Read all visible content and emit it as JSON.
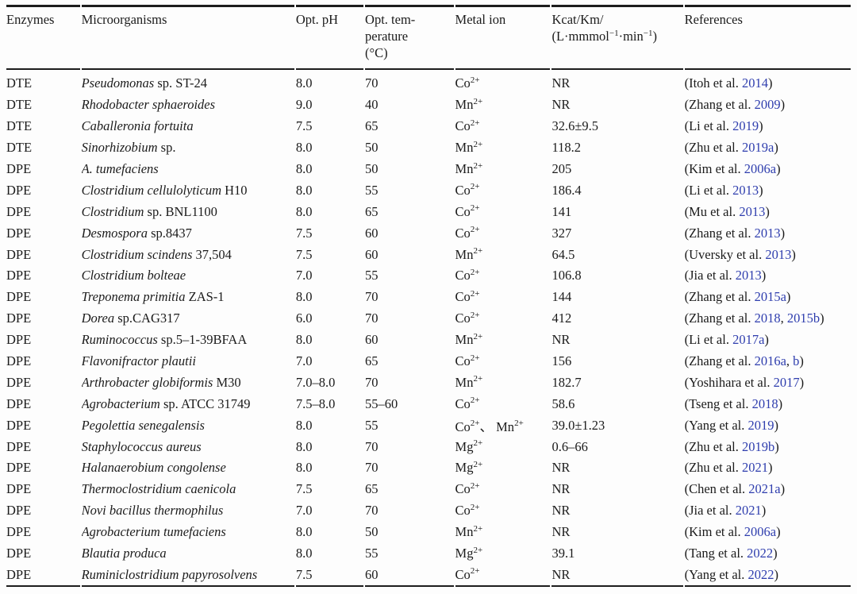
{
  "colors": {
    "link": "#2F3EAE",
    "text": "#1b1b1b",
    "rule": "#1d1d1d",
    "background": "#fdfdfd"
  },
  "table": {
    "columns": [
      {
        "id": "enzymes",
        "width_pct": 8.8,
        "label_lines": [
          "Enzymes"
        ]
      },
      {
        "id": "microorganisms",
        "width_pct": 25.5,
        "label_lines": [
          "Microorganisms"
        ]
      },
      {
        "id": "opt-ph",
        "width_pct": 8.1,
        "label_lines": [
          "Opt. pH"
        ]
      },
      {
        "id": "opt-temperature",
        "width_pct": 10.6,
        "label_lines": [
          "Opt. tem-",
          "perature",
          "(°C)"
        ]
      },
      {
        "id": "metal-ion",
        "width_pct": 11.4,
        "label_lines": [
          "Metal ion"
        ]
      },
      {
        "id": "kcat-km",
        "width_pct": 15.7,
        "label_lines": [
          "Kcat/Km/",
          "(L·mmmol^−1^·min^−1^)"
        ]
      },
      {
        "id": "references",
        "width_pct": 19.9,
        "label_lines": [
          "References"
        ]
      }
    ],
    "rows": [
      {
        "enzyme": "DTE",
        "microorganism": "*Pseudomonas* sp. ST-24",
        "opt_ph": "8.0",
        "opt_temperature": "70",
        "metal_ion": "Co^2+^",
        "kcat_km": "NR",
        "reference": {
          "prefix": "(Itoh et al. ",
          "years": [
            "2014"
          ],
          "suffix": ")"
        }
      },
      {
        "enzyme": "DTE",
        "microorganism": "*Rhodobacter sphaeroides*",
        "opt_ph": "9.0",
        "opt_temperature": "40",
        "metal_ion": "Mn^2+^",
        "kcat_km": "NR",
        "reference": {
          "prefix": "(Zhang et al. ",
          "years": [
            "2009"
          ],
          "suffix": ")"
        }
      },
      {
        "enzyme": "DTE",
        "microorganism": "*Caballeronia fortuita*",
        "opt_ph": "7.5",
        "opt_temperature": "65",
        "metal_ion": "Co^2+^",
        "kcat_km": "32.6±9.5",
        "reference": {
          "prefix": "(Li et al. ",
          "years": [
            "2019"
          ],
          "suffix": ")"
        }
      },
      {
        "enzyme": "DTE",
        "microorganism": "*Sinorhizobium* sp.",
        "opt_ph": "8.0",
        "opt_temperature": "50",
        "metal_ion": "Mn^2+^",
        "kcat_km": "118.2",
        "reference": {
          "prefix": "(Zhu et al. ",
          "years": [
            "2019a"
          ],
          "suffix": ")"
        }
      },
      {
        "enzyme": "DPE",
        "microorganism": "*A. tumefaciens*",
        "opt_ph": "8.0",
        "opt_temperature": "50",
        "metal_ion": "Mn^2+^",
        "kcat_km": "205",
        "reference": {
          "prefix": "(Kim et al. ",
          "years": [
            "2006a"
          ],
          "suffix": ")"
        }
      },
      {
        "enzyme": "DPE",
        "microorganism": "*Clostridium cellulolyticum* H10",
        "opt_ph": "8.0",
        "opt_temperature": "55",
        "metal_ion": "Co^2+^",
        "kcat_km": "186.4",
        "reference": {
          "prefix": "(Li et al. ",
          "years": [
            "2013"
          ],
          "suffix": ")"
        }
      },
      {
        "enzyme": "DPE",
        "microorganism": "*Clostridium* sp. BNL1100",
        "opt_ph": "8.0",
        "opt_temperature": "65",
        "metal_ion": "Co^2+^",
        "kcat_km": "141",
        "reference": {
          "prefix": "(Mu et al. ",
          "years": [
            "2013"
          ],
          "suffix": ")"
        }
      },
      {
        "enzyme": "DPE",
        "microorganism": "*Desmospora* sp.8437",
        "opt_ph": "7.5",
        "opt_temperature": "60",
        "metal_ion": "Co^2+^",
        "kcat_km": "327",
        "reference": {
          "prefix": "(Zhang et al. ",
          "years": [
            "2013"
          ],
          "suffix": ")"
        }
      },
      {
        "enzyme": "DPE",
        "microorganism": "*Clostridium scindens* 37,504",
        "opt_ph": "7.5",
        "opt_temperature": "60",
        "metal_ion": "Mn^2+^",
        "kcat_km": "64.5",
        "reference": {
          "prefix": "(Uversky et al. ",
          "years": [
            "2013"
          ],
          "suffix": ")"
        }
      },
      {
        "enzyme": "DPE",
        "microorganism": "*Clostridium bolteae*",
        "opt_ph": "7.0",
        "opt_temperature": "55",
        "metal_ion": "Co^2+^",
        "kcat_km": "106.8",
        "reference": {
          "prefix": "(Jia et al. ",
          "years": [
            "2013"
          ],
          "suffix": ")"
        }
      },
      {
        "enzyme": "DPE",
        "microorganism": "*Treponema primitia* ZAS-1",
        "opt_ph": "8.0",
        "opt_temperature": "70",
        "metal_ion": "Co^2+^",
        "kcat_km": "144",
        "reference": {
          "prefix": "(Zhang et al. ",
          "years": [
            "2015a"
          ],
          "suffix": ")"
        }
      },
      {
        "enzyme": "DPE",
        "microorganism": "*Dorea* sp.CAG317",
        "opt_ph": "6.0",
        "opt_temperature": "70",
        "metal_ion": "Co^2+^",
        "kcat_km": "412",
        "reference": {
          "prefix": "(Zhang et al. ",
          "years": [
            "2018",
            "2015b"
          ],
          "suffix": ")"
        }
      },
      {
        "enzyme": "DPE",
        "microorganism": "*Ruminococcus* sp.5–1-39BFAA",
        "opt_ph": "8.0",
        "opt_temperature": "60",
        "metal_ion": "Mn^2+^",
        "kcat_km": "NR",
        "reference": {
          "prefix": "(Li et al. ",
          "years": [
            "2017a"
          ],
          "suffix": ")"
        }
      },
      {
        "enzyme": "DPE",
        "microorganism": "*Flavonifractor plautii*",
        "opt_ph": "7.0",
        "opt_temperature": "65",
        "metal_ion": "Co^2+^",
        "kcat_km": "156",
        "reference": {
          "prefix": "(Zhang et al. ",
          "years": [
            "2016a",
            "b"
          ],
          "suffix": ")"
        }
      },
      {
        "enzyme": "DPE",
        "microorganism": "*Arthrobacter globiformis* M30",
        "opt_ph": "7.0–8.0",
        "opt_temperature": "70",
        "metal_ion": "Mn^2+^",
        "kcat_km": "182.7",
        "reference": {
          "prefix": "(Yoshihara et al. ",
          "years": [
            "2017"
          ],
          "suffix": ")"
        }
      },
      {
        "enzyme": "DPE",
        "microorganism": "*Agrobacterium* sp. ATCC 31749",
        "opt_ph": "7.5–8.0",
        "opt_temperature": "55–60",
        "metal_ion": "Co^2+^",
        "kcat_km": "58.6",
        "reference": {
          "prefix": "(Tseng et al. ",
          "years": [
            "2018"
          ],
          "suffix": ")"
        }
      },
      {
        "enzyme": "DPE",
        "microorganism": "*Pegolettia senegalensis*",
        "opt_ph": "8.0",
        "opt_temperature": "55",
        "metal_ion": "Co^2+^、 Mn^2+^",
        "kcat_km": "39.0±1.23",
        "reference": {
          "prefix": "(Yang et al. ",
          "years": [
            "2019"
          ],
          "suffix": ")"
        }
      },
      {
        "enzyme": "DPE",
        "microorganism": "*Staphylococcus aureus*",
        "opt_ph": "8.0",
        "opt_temperature": "70",
        "metal_ion": "Mg^2+^",
        "kcat_km": "0.6–66",
        "reference": {
          "prefix": "(Zhu et al. ",
          "years": [
            "2019b"
          ],
          "suffix": ")"
        }
      },
      {
        "enzyme": "DPE",
        "microorganism": "*Halanaerobium congolense*",
        "opt_ph": "8.0",
        "opt_temperature": "70",
        "metal_ion": "Mg^2+^",
        "kcat_km": "NR",
        "reference": {
          "prefix": "(Zhu et al. ",
          "years": [
            "2021"
          ],
          "suffix": ")"
        }
      },
      {
        "enzyme": "DPE",
        "microorganism": "*Thermoclostridium caenicola*",
        "opt_ph": "7.5",
        "opt_temperature": "65",
        "metal_ion": "Co^2+^",
        "kcat_km": "NR",
        "reference": {
          "prefix": "(Chen et al. ",
          "years": [
            "2021a"
          ],
          "suffix": ")"
        }
      },
      {
        "enzyme": "DPE",
        "microorganism": "*Novi bacillus thermophilus*",
        "opt_ph": "7.0",
        "opt_temperature": "70",
        "metal_ion": "Co^2+^",
        "kcat_km": "NR",
        "reference": {
          "prefix": "(Jia et al. ",
          "years": [
            "2021"
          ],
          "suffix": ")"
        }
      },
      {
        "enzyme": "DPE",
        "microorganism": "*Agrobacterium tumefaciens*",
        "opt_ph": "8.0",
        "opt_temperature": "50",
        "metal_ion": "Mn^2+^",
        "kcat_km": "NR",
        "reference": {
          "prefix": "(Kim et al. ",
          "years": [
            "2006a"
          ],
          "suffix": ")"
        }
      },
      {
        "enzyme": "DPE",
        "microorganism": "*Blautia produca*",
        "opt_ph": "8.0",
        "opt_temperature": "55",
        "metal_ion": "Mg^2+^",
        "kcat_km": "39.1",
        "reference": {
          "prefix": "(Tang et al. ",
          "years": [
            "2022"
          ],
          "suffix": ")"
        }
      },
      {
        "enzyme": "DPE",
        "microorganism": "*Ruminiclostridium papyrosolvens*",
        "opt_ph": "7.5",
        "opt_temperature": "60",
        "metal_ion": "Co^2+^",
        "kcat_km": "NR",
        "reference": {
          "prefix": "(Yang et al. ",
          "years": [
            "2022"
          ],
          "suffix": ")"
        }
      }
    ]
  }
}
